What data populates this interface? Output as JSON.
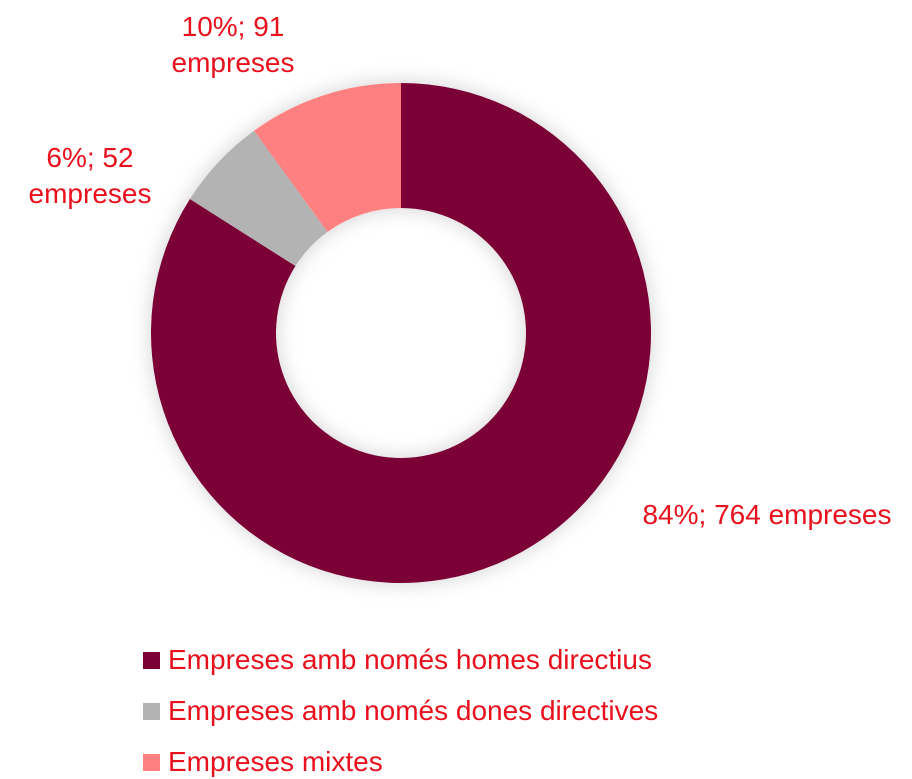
{
  "chart_data": {
    "type": "donut",
    "categories": [
      "Empreses amb només homes directius",
      "Empreses amb només dones directives",
      "Empreses mixtes"
    ],
    "values": [
      84,
      6,
      10
    ],
    "value_labels": [
      "84%; 764 empreses",
      "6%; 52 empreses",
      "10%; 91 empreses"
    ],
    "colors": [
      "#7a0036",
      "#b3b3b3",
      "#ff8080"
    ],
    "legend": "bottom"
  }
}
